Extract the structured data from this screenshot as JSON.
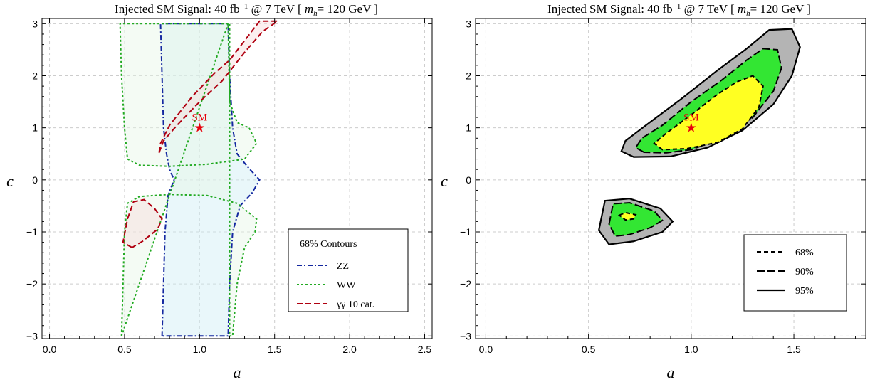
{
  "chart_data": [
    {
      "type": "contour",
      "title_prefix": "Injected SM Signal:  40 fb",
      "title_sup": "−1",
      "title_mid": " @ 7 TeV [ ",
      "title_m": "m",
      "title_h": "h",
      "title_suffix": "= 120 GeV ]",
      "xlabel": "a",
      "ylabel": "c",
      "xlim": [
        -0.05,
        2.55
      ],
      "ylim": [
        -3.05,
        3.1
      ],
      "xticks": [
        "0.0",
        "0.5",
        "1.0",
        "1.5",
        "2.0",
        "2.5"
      ],
      "xtick_values": [
        0,
        0.5,
        1,
        1.5,
        2,
        2.5
      ],
      "yticks": [
        "−3",
        "−2",
        "−1",
        "0",
        "1",
        "2",
        "3"
      ],
      "ytick_values": [
        -3,
        -2,
        -1,
        0,
        1,
        2,
        3
      ],
      "grid": true,
      "sm_point": {
        "label": "SM",
        "x": 1.0,
        "y": 1.0
      },
      "legend": {
        "title": "68% Contours",
        "position": "bottom-right",
        "entries": [
          "ZZ",
          "WW",
          "γγ 10 cat."
        ]
      },
      "series": [
        {
          "name": "ZZ",
          "color": "#1428a0",
          "fill": "#cfeef5",
          "dash": "7,3,2,3",
          "regions": [
            [
              [
                0.75,
                -3.0
              ],
              [
                0.76,
                -2.0
              ],
              [
                0.77,
                -1.0
              ],
              [
                0.79,
                -0.3
              ],
              [
                0.83,
                0.0
              ],
              [
                0.8,
                0.2
              ],
              [
                0.78,
                0.5
              ],
              [
                0.76,
                1.0
              ],
              [
                0.75,
                2.0
              ],
              [
                0.74,
                3.0
              ],
              [
                1.19,
                3.0
              ],
              [
                1.2,
                2.0
              ],
              [
                1.22,
                1.0
              ],
              [
                1.25,
                0.5
              ],
              [
                1.32,
                0.25
              ],
              [
                1.4,
                0.0
              ],
              [
                1.35,
                -0.25
              ],
              [
                1.27,
                -0.5
              ],
              [
                1.22,
                -1.0
              ],
              [
                1.2,
                -2.0
              ],
              [
                1.19,
                -3.0
              ]
            ]
          ]
        },
        {
          "name": "WW",
          "color": "#22aa22",
          "fill": "#e6f7e6",
          "dash": "3,3",
          "regions": [
            [
              [
                0.48,
                -3.0
              ],
              [
                0.49,
                -2.0
              ],
              [
                0.5,
                -1.0
              ],
              [
                0.52,
                -0.45
              ],
              [
                0.6,
                -0.32
              ],
              [
                0.8,
                -0.28
              ],
              [
                1.05,
                -0.3
              ],
              [
                1.25,
                -0.45
              ],
              [
                1.38,
                -0.75
              ],
              [
                1.37,
                -1.0
              ],
              [
                1.3,
                -1.3
              ],
              [
                1.25,
                -2.0
              ],
              [
                1.22,
                -3.0
              ],
              [
                1.2,
                -3.0
              ],
              [
                1.2,
                3.0
              ],
              [
                0.47,
                3.0
              ],
              [
                0.48,
                2.0
              ],
              [
                0.5,
                1.0
              ],
              [
                0.52,
                0.4
              ],
              [
                0.6,
                0.28
              ],
              [
                0.8,
                0.26
              ],
              [
                1.05,
                0.3
              ],
              [
                1.3,
                0.4
              ],
              [
                1.38,
                0.7
              ],
              [
                1.33,
                1.0
              ],
              [
                1.25,
                1.1
              ],
              [
                1.2,
                1.5
              ],
              [
                1.19,
                3.0
              ]
            ]
          ]
        },
        {
          "name": "γγ 10 cat.",
          "color": "#b00010",
          "fill": "#f6dcdc",
          "dash": "8,4",
          "regions": [
            [
              [
                0.73,
                0.52
              ],
              [
                0.76,
                0.75
              ],
              [
                0.85,
                1.05
              ],
              [
                1.0,
                1.5
              ],
              [
                1.15,
                1.9
              ],
              [
                1.3,
                2.45
              ],
              [
                1.42,
                2.85
              ],
              [
                1.52,
                3.05
              ],
              [
                1.4,
                3.05
              ],
              [
                1.28,
                2.6
              ],
              [
                1.2,
                2.3
              ],
              [
                1.1,
                2.05
              ],
              [
                0.95,
                1.6
              ],
              [
                0.8,
                1.05
              ],
              [
                0.74,
                0.7
              ]
            ],
            [
              [
                0.55,
                -1.3
              ],
              [
                0.49,
                -1.2
              ],
              [
                0.52,
                -0.75
              ],
              [
                0.56,
                -0.42
              ],
              [
                0.63,
                -0.38
              ],
              [
                0.7,
                -0.55
              ],
              [
                0.75,
                -0.75
              ],
              [
                0.72,
                -0.95
              ],
              [
                0.62,
                -1.18
              ]
            ]
          ]
        }
      ]
    },
    {
      "type": "contour",
      "title_prefix": "Injected SM Signal:  40 fb",
      "title_sup": "−1",
      "title_mid": " @ 7 TeV [ ",
      "title_m": "m",
      "title_h": "h",
      "title_suffix": "= 120 GeV ]",
      "xlabel": "a",
      "ylabel": "c",
      "xlim": [
        -0.05,
        1.85
      ],
      "ylim": [
        -3.05,
        3.1
      ],
      "xticks": [
        "0.0",
        "0.5",
        "1.0",
        "1.5"
      ],
      "xtick_values": [
        0,
        0.5,
        1,
        1.5
      ],
      "yticks": [
        "−3",
        "−2",
        "−1",
        "0",
        "1",
        "2",
        "3"
      ],
      "ytick_values": [
        -3,
        -2,
        -1,
        0,
        1,
        2,
        3
      ],
      "grid": true,
      "sm_point": {
        "label": "SM",
        "x": 1.0,
        "y": 1.0
      },
      "legend": {
        "position": "bottom-right",
        "entries": [
          "68%",
          "90%",
          "95%"
        ]
      },
      "levels": [
        {
          "name": "95%",
          "fill": "#b4b4b4",
          "dash": "",
          "width": 2.2,
          "regions": [
            [
              [
                0.72,
                0.44
              ],
              [
                0.66,
                0.55
              ],
              [
                0.68,
                0.75
              ],
              [
                0.78,
                1.05
              ],
              [
                0.95,
                1.55
              ],
              [
                1.12,
                2.08
              ],
              [
                1.27,
                2.52
              ],
              [
                1.38,
                2.88
              ],
              [
                1.49,
                2.9
              ],
              [
                1.53,
                2.55
              ],
              [
                1.49,
                2.0
              ],
              [
                1.4,
                1.45
              ],
              [
                1.25,
                0.95
              ],
              [
                1.08,
                0.62
              ],
              [
                0.9,
                0.45
              ]
            ],
            [
              [
                0.55,
                -0.97
              ],
              [
                0.58,
                -0.4
              ],
              [
                0.7,
                -0.36
              ],
              [
                0.85,
                -0.55
              ],
              [
                0.91,
                -0.8
              ],
              [
                0.86,
                -1.0
              ],
              [
                0.72,
                -1.18
              ],
              [
                0.6,
                -1.24
              ]
            ]
          ]
        },
        {
          "name": "90%",
          "fill": "#33e633",
          "dash": "11,4",
          "width": 2.0,
          "regions": [
            [
              [
                0.77,
                0.53
              ],
              [
                0.73,
                0.62
              ],
              [
                0.76,
                0.8
              ],
              [
                0.86,
                1.05
              ],
              [
                1.0,
                1.5
              ],
              [
                1.15,
                1.92
              ],
              [
                1.27,
                2.3
              ],
              [
                1.35,
                2.52
              ],
              [
                1.42,
                2.5
              ],
              [
                1.44,
                2.15
              ],
              [
                1.4,
                1.7
              ],
              [
                1.3,
                1.2
              ],
              [
                1.15,
                0.8
              ],
              [
                1.0,
                0.58
              ],
              [
                0.88,
                0.52
              ]
            ],
            [
              [
                0.6,
                -0.85
              ],
              [
                0.62,
                -0.46
              ],
              [
                0.7,
                -0.44
              ],
              [
                0.82,
                -0.6
              ],
              [
                0.86,
                -0.78
              ],
              [
                0.8,
                -0.92
              ],
              [
                0.7,
                -1.05
              ],
              [
                0.63,
                -1.08
              ]
            ]
          ]
        },
        {
          "name": "68%",
          "fill": "#ffff22",
          "dash": "6,4",
          "width": 2.0,
          "regions": [
            [
              [
                0.86,
                0.58
              ],
              [
                0.82,
                0.7
              ],
              [
                0.88,
                0.9
              ],
              [
                1.0,
                1.25
              ],
              [
                1.12,
                1.62
              ],
              [
                1.22,
                1.88
              ],
              [
                1.3,
                2.0
              ],
              [
                1.35,
                1.8
              ],
              [
                1.33,
                1.4
              ],
              [
                1.25,
                0.98
              ],
              [
                1.13,
                0.72
              ],
              [
                0.98,
                0.6
              ]
            ],
            [
              [
                0.65,
                -0.68
              ],
              [
                0.68,
                -0.63
              ],
              [
                0.73,
                -0.67
              ],
              [
                0.72,
                -0.75
              ],
              [
                0.68,
                -0.77
              ]
            ]
          ]
        }
      ]
    }
  ]
}
